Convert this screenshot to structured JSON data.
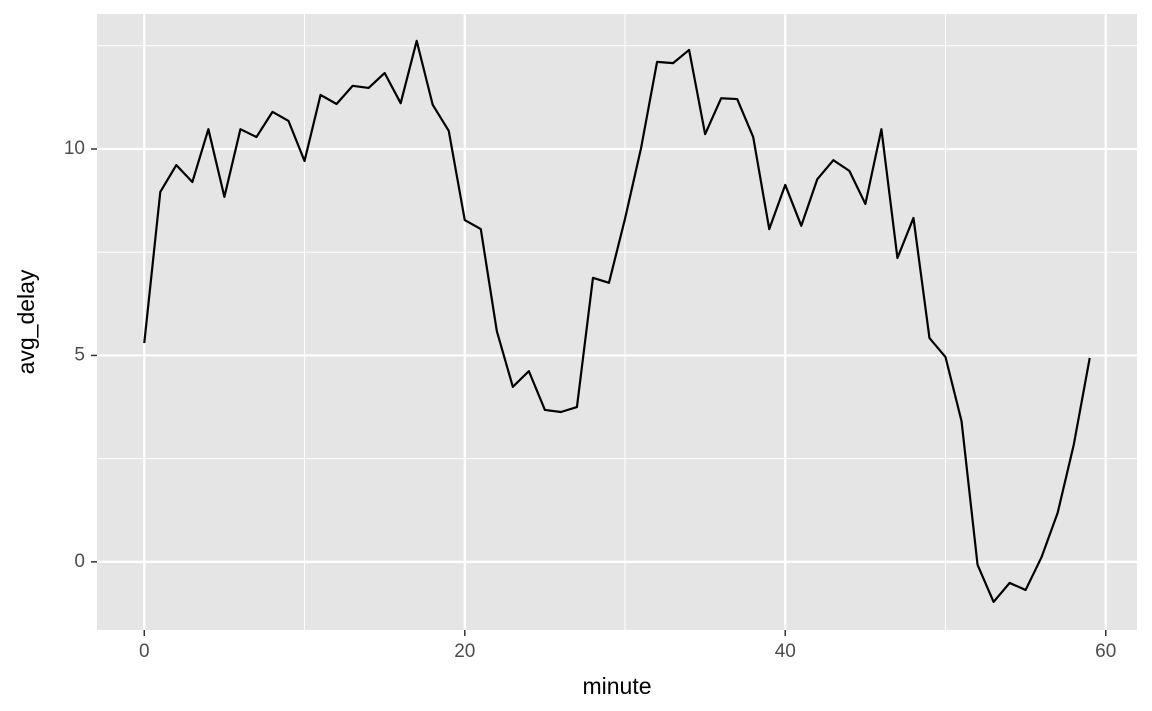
{
  "chart_data": {
    "type": "line",
    "x_label": "minute",
    "y_label": "avg_delay",
    "x": [
      0,
      1,
      2,
      3,
      4,
      5,
      6,
      7,
      8,
      9,
      10,
      11,
      12,
      13,
      14,
      15,
      16,
      17,
      18,
      19,
      20,
      21,
      22,
      23,
      24,
      25,
      26,
      27,
      28,
      29,
      30,
      31,
      32,
      33,
      34,
      35,
      36,
      37,
      38,
      39,
      40,
      41,
      42,
      43,
      44,
      45,
      46,
      47,
      48,
      49,
      50,
      51,
      52,
      53,
      54,
      55,
      56,
      57,
      58,
      59
    ],
    "series": [
      {
        "name": "avg_delay",
        "color": "#000000",
        "values": [
          5.3,
          8.96,
          9.61,
          9.2,
          10.48,
          8.84,
          10.48,
          10.29,
          10.9,
          10.68,
          9.71,
          11.31,
          11.09,
          11.53,
          11.48,
          11.84,
          11.11,
          12.62,
          11.07,
          10.44,
          8.28,
          8.06,
          5.59,
          4.24,
          4.62,
          3.68,
          3.63,
          3.75,
          6.88,
          6.76,
          8.31,
          10.02,
          12.11,
          12.08,
          12.4,
          10.36,
          11.23,
          11.21,
          10.29,
          8.06,
          9.13,
          8.14,
          9.27,
          9.73,
          9.47,
          8.67,
          10.48,
          7.36,
          8.33,
          5.42,
          4.96,
          3.41,
          -0.07,
          -0.97,
          -0.51,
          -0.68,
          0.12,
          1.19,
          2.83,
          4.94
        ]
      }
    ],
    "xlim": [
      -2.95,
      61.95
    ],
    "ylim": [
      -1.65,
      13.27
    ],
    "xticks": [
      0,
      20,
      40,
      60
    ],
    "yticks": [
      0,
      5,
      10
    ],
    "x_minor_breaks": [
      10,
      30,
      50
    ],
    "y_minor_breaks": [
      2.5,
      7.5,
      12.5
    ],
    "grid": true,
    "panel_color": "#e5e5e5"
  }
}
